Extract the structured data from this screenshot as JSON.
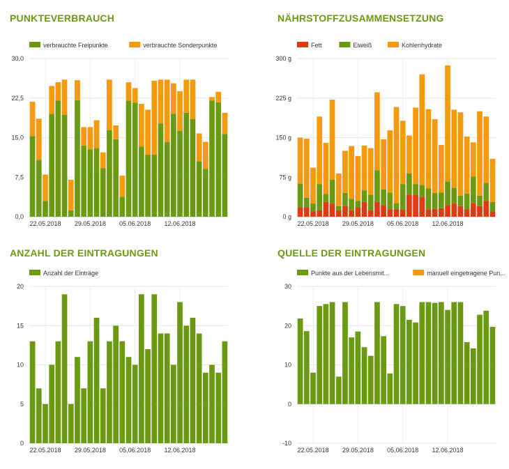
{
  "chart_data": [
    {
      "type": "bar",
      "stacked": true,
      "title": "PUNKTEVERBRAUCH",
      "x_tick_labels": [
        "22.05.2018",
        "29.05.2018",
        "05.06.2018",
        "12.06.2018"
      ],
      "x_tick_index": [
        2,
        9,
        16,
        23
      ],
      "y_tick_labels": [
        "0,0",
        "7,5",
        "15,0",
        "22,5",
        "30,0"
      ],
      "ylim": [
        0,
        30
      ],
      "legend": "top-left",
      "grid": true,
      "series": [
        {
          "name": "verbrauchte Freipunkte",
          "color": "#6b9a12",
          "values": [
            15.3,
            10.8,
            3.0,
            19.5,
            22.0,
            19.3,
            1.2,
            22.1,
            13.5,
            12.8,
            13.0,
            9.2,
            16.4,
            14.7,
            3.8,
            22.0,
            21.6,
            13.3,
            11.8,
            11.8,
            17.7,
            14.2,
            19.5,
            16.3,
            19.7,
            18.5,
            10.5,
            9.1,
            22.0,
            21.7,
            15.7
          ]
        },
        {
          "name": "verbrauchte Sonderpunkte",
          "color": "#f5990d",
          "values": [
            6.5,
            7.8,
            5.0,
            5.3,
            3.5,
            6.7,
            5.8,
            3.8,
            3.5,
            4.2,
            5.3,
            3.0,
            9.6,
            2.6,
            4.0,
            3.5,
            2.8,
            8.1,
            8.5,
            14.0,
            8.3,
            11.8,
            5.8,
            7.5,
            6.3,
            7.5,
            5.3,
            5.1,
            0.7,
            2.0,
            4.0
          ]
        }
      ]
    },
    {
      "type": "bar",
      "stacked": true,
      "title": "NÄHRSTOFFZUSAMMENSETZUNG",
      "x_tick_labels": [
        "22.05.2018",
        "29.05.2018",
        "05.06.2018",
        "12.06.2018"
      ],
      "x_tick_index": [
        2,
        9,
        16,
        23
      ],
      "y_tick_labels": [
        "0 g",
        "75 g",
        "150 g",
        "225 g",
        "300 g"
      ],
      "ylim": [
        0,
        300
      ],
      "legend": "top-left",
      "grid": true,
      "series": [
        {
          "name": "Fett",
          "color": "#e03a12",
          "values": [
            18,
            18,
            10,
            12,
            28,
            25,
            12,
            20,
            12,
            18,
            28,
            12,
            28,
            22,
            14,
            14,
            14,
            42,
            42,
            38,
            14,
            15,
            16,
            22,
            25,
            20,
            14,
            26,
            20,
            30,
            10
          ]
        },
        {
          "name": "Eiweiß",
          "color": "#6b9a12",
          "values": [
            45,
            18,
            15,
            50,
            15,
            45,
            8,
            25,
            22,
            12,
            22,
            30,
            60,
            30,
            32,
            12,
            48,
            40,
            20,
            22,
            40,
            30,
            30,
            45,
            30,
            20,
            30,
            50,
            20,
            34,
            18
          ]
        },
        {
          "name": "Kohlenhydrate",
          "color": "#f5990d",
          "values": [
            87,
            112,
            68,
            128,
            97,
            152,
            62,
            80,
            100,
            85,
            85,
            88,
            148,
            95,
            118,
            182,
            120,
            72,
            145,
            210,
            150,
            140,
            90,
            220,
            148,
            158,
            108,
            65,
            160,
            126,
            82
          ]
        }
      ]
    },
    {
      "type": "bar",
      "title": "ANZAHL DER EINTRAGUNGEN",
      "x_tick_labels": [
        "22.05.2018",
        "29.05.2018",
        "05.06.2018",
        "12.06.2018"
      ],
      "x_tick_index": [
        2,
        9,
        16,
        23
      ],
      "y_tick_labels": [
        "0",
        "5",
        "10",
        "15",
        "20"
      ],
      "ylim": [
        0,
        20
      ],
      "legend": "top-left",
      "grid": true,
      "series": [
        {
          "name": "Anzahl der Einträge",
          "color": "#6b9a12",
          "values": [
            13,
            7,
            5,
            10,
            13,
            19,
            5,
            11,
            7,
            13,
            16,
            7,
            13,
            15,
            13,
            11,
            10,
            19,
            12,
            19,
            14,
            14,
            10,
            18,
            15,
            16,
            14,
            9,
            10,
            9,
            13
          ]
        }
      ]
    },
    {
      "type": "bar",
      "title": "QUELLE DER EINTRAGUNGEN",
      "x_tick_labels": [
        "22.05.2018",
        "29.05.2018",
        "05.06.2018",
        "12.06.2018"
      ],
      "x_tick_index": [
        2,
        9,
        16,
        23
      ],
      "y_tick_labels": [
        "-10",
        "0",
        "10",
        "20",
        "30"
      ],
      "ylim": [
        -10,
        30
      ],
      "legend": "top-left",
      "grid": true,
      "series": [
        {
          "name": "Punkte aus der Lebensmit...",
          "color": "#6b9a12",
          "values": [
            21.8,
            18.6,
            8.0,
            25.0,
            25.5,
            26.0,
            7.0,
            26.0,
            17.0,
            18.5,
            14.5,
            12.3,
            26.0,
            17.3,
            7.8,
            25.5,
            25.0,
            21.5,
            20.8,
            26.0,
            26.0,
            25.8,
            26.0,
            24.0,
            26.0,
            26.0,
            15.8,
            14.2,
            22.8,
            23.8,
            19.7
          ]
        },
        {
          "name": "manuell eingetragene Pun...",
          "color": "#f5990d",
          "values": [
            0,
            0,
            0,
            0,
            0,
            0,
            0,
            0,
            0,
            0,
            0,
            0,
            0,
            0,
            0,
            0,
            0,
            0,
            0,
            0,
            0,
            0,
            0,
            0,
            0,
            0,
            0,
            0,
            0,
            0,
            0
          ]
        }
      ]
    }
  ]
}
